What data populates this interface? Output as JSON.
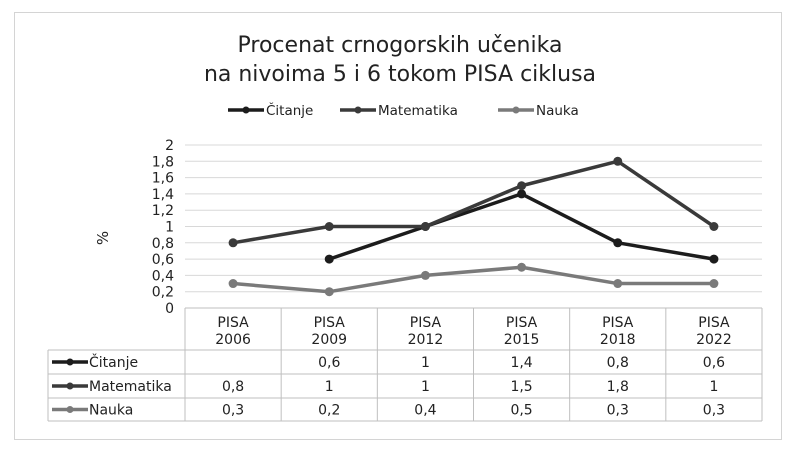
{
  "chart_data": {
    "type": "line",
    "title": [
      "Procenat crnogorskih učenika",
      "na nivoima 5 i 6 tokom PISA ciklusa"
    ],
    "ylabel": "%",
    "xlabel": "",
    "ylim": [
      0,
      2
    ],
    "yticks": [
      "0",
      "0,2",
      "0,4",
      "0,6",
      "0,8",
      "1",
      "1,2",
      "1,4",
      "1,6",
      "1,8",
      "2"
    ],
    "grid": true,
    "legend_position": "top",
    "categories": [
      [
        "PISA",
        "2006"
      ],
      [
        "PISA",
        "2009"
      ],
      [
        "PISA",
        "2012"
      ],
      [
        "PISA",
        "2015"
      ],
      [
        "PISA",
        "2018"
      ],
      [
        "PISA",
        "2022"
      ]
    ],
    "series": [
      {
        "name": "Čitanje",
        "color": "#1c1c1c",
        "values": [
          null,
          0.6,
          1,
          1.4,
          0.8,
          0.6
        ],
        "labels": [
          "",
          "0,6",
          "1",
          "1,4",
          "0,8",
          "0,6"
        ]
      },
      {
        "name": "Matematika",
        "color": "#3a3a3a",
        "values": [
          0.8,
          1,
          1,
          1.5,
          1.8,
          1
        ],
        "labels": [
          "0,8",
          "1",
          "1",
          "1,5",
          "1,8",
          "1"
        ]
      },
      {
        "name": "Nauka",
        "color": "#7a7a7a",
        "values": [
          0.3,
          0.2,
          0.4,
          0.5,
          0.3,
          0.3
        ],
        "labels": [
          "0,3",
          "0,2",
          "0,4",
          "0,5",
          "0,3",
          "0,3"
        ]
      }
    ]
  }
}
